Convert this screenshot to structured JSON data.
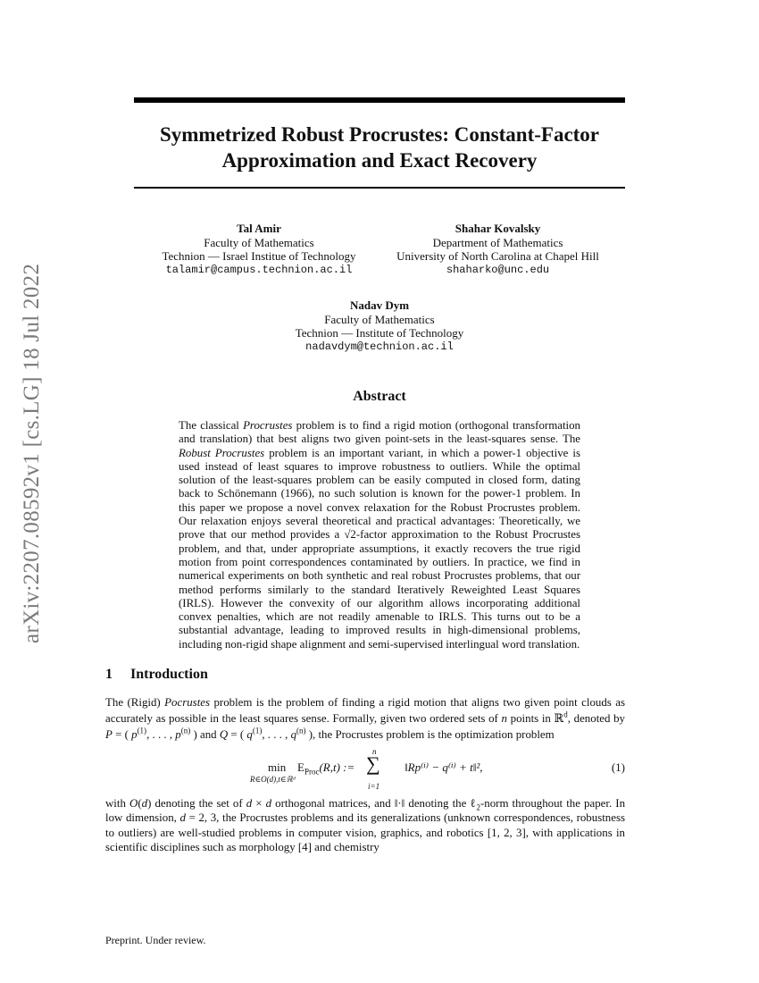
{
  "arxiv_stamp": "arXiv:2207.08592v1  [cs.LG]  18 Jul 2022",
  "title": [
    "Symmetrized Robust Procrustes: Constant-Factor",
    "Approximation and Exact Recovery"
  ],
  "authors": [
    {
      "name": "Tal Amir",
      "dept": "Faculty of Mathematics",
      "inst": "Technion — Israel Institue of Technology",
      "email": "talamir@campus.technion.ac.il"
    },
    {
      "name": "Shahar Kovalsky",
      "dept": "Department of Mathematics",
      "inst": "University of North Carolina at Chapel Hill",
      "email": "shaharko@unc.edu"
    },
    {
      "name": "Nadav Dym",
      "dept": "Faculty of Mathematics",
      "inst": "Technion — Institute of Technology",
      "email": "nadavdym@technion.ac.il"
    }
  ],
  "abstract_heading": "Abstract",
  "abstract": [
    [
      "n",
      "The classical "
    ],
    [
      "i",
      "Procrustes"
    ],
    [
      "n",
      " problem is to find a rigid motion (orthogonal transformation and translation) that best aligns two given point-sets in the least-squares sense. The "
    ],
    [
      "i",
      "Robust Procrustes"
    ],
    [
      "n",
      " problem is an important variant, in which a power-1 objective is used instead of least squares to improve robustness to outliers. While the optimal solution of the least-squares problem can be easily computed in closed form, dating back to Schönemann (1966), no such solution is known for the power-1 problem.  In this paper we propose a novel convex relaxation for the Robust Procrustes problem.  Our relaxation enjoys several theoretical and practical advantages: Theoretically, we prove that our method provides a √2-factor approximation to the Robust Procrustes problem, and that, under appropriate assumptions, it exactly recovers the true rigid motion from point correspondences contaminated by outliers.  In practice, we find in numerical experiments on both synthetic and real robust Procrustes problems, that our method performs similarly to the standard Iteratively Reweighted Least Squares (IRLS). However the convexity of our algorithm allows incorporating additional convex penalties, which are not readily amenable to IRLS. This turns out to be a substantial advantage, leading to improved results in high-dimensional problems, including non-rigid shape alignment and semi-supervised interlingual word translation."
    ]
  ],
  "section": {
    "number": "1",
    "title": "Introduction"
  },
  "intro_p1": [
    [
      "n",
      "The (Rigid) "
    ],
    [
      "i",
      "Pocrustes"
    ],
    [
      "n",
      " problem is the problem of finding a rigid motion that aligns two given point clouds as accurately as possible in the least squares sense.  Formally, given two ordered sets of "
    ],
    [
      "i",
      "n"
    ],
    [
      "n",
      " points in ℝ"
    ],
    [
      "sup",
      "d"
    ],
    [
      "n",
      ", denoted by "
    ],
    [
      "i",
      "P"
    ],
    [
      "n",
      " = ( "
    ],
    [
      "i",
      "p"
    ],
    [
      "sup",
      "(1)"
    ],
    [
      "n",
      ", . . . , "
    ],
    [
      "i",
      "p"
    ],
    [
      "sup",
      "(n)"
    ],
    [
      "n",
      " ) and "
    ],
    [
      "i",
      "Q"
    ],
    [
      "n",
      " = ( "
    ],
    [
      "i",
      "q"
    ],
    [
      "sup",
      "(1)"
    ],
    [
      "n",
      ", . . . , "
    ],
    [
      "i",
      "q"
    ],
    [
      "sup",
      "(n)"
    ],
    [
      "n",
      " ), the Procrustes problem is the optimization problem"
    ]
  ],
  "equation": {
    "min": "min",
    "min_sub": "R∈O(d),t∈ℝᵈ",
    "lhs": "E",
    "lhs_sub": "Proc",
    "lhs_args": "(R,t) := ",
    "sum_top": "n",
    "sum_bottom": "i=1",
    "sum": "∑",
    "term": "‖Rp⁽ⁱ⁾ − q⁽ⁱ⁾ + t‖²,",
    "number": "(1)"
  },
  "intro_p2": [
    [
      "n",
      "with "
    ],
    [
      "i",
      "O"
    ],
    [
      "n",
      "("
    ],
    [
      "i",
      "d"
    ],
    [
      "n",
      ") denoting the set of "
    ],
    [
      "i",
      "d"
    ],
    [
      "n",
      " × "
    ],
    [
      "i",
      "d"
    ],
    [
      "n",
      " orthogonal matrices, and ‖·‖ denoting the ℓ"
    ],
    [
      "sub",
      "2"
    ],
    [
      "n",
      "-norm throughout the paper.  In low dimension, "
    ],
    [
      "i",
      "d"
    ],
    [
      "n",
      " = 2, 3, the Procrustes problems and its generalizations (unknown correspondences, robustness to outliers) are well-studied problems in computer vision, graphics, and robotics [1, 2, 3], with applications in scientific disciplines such as morphology [4] and chemistry"
    ]
  ],
  "footer": "Preprint. Under review."
}
